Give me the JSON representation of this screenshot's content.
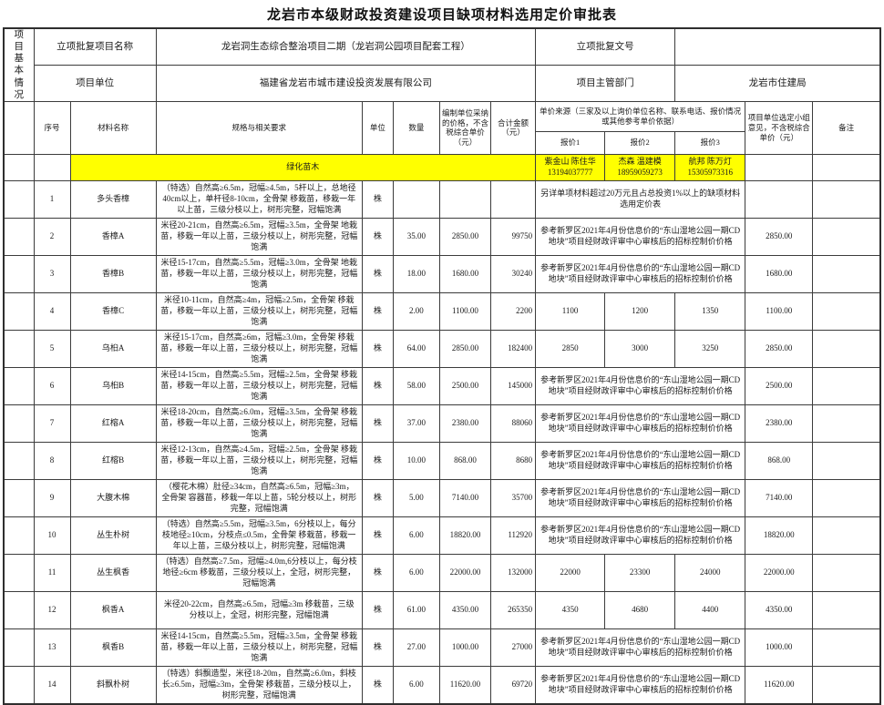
{
  "title": "龙岩市本级财政投资建设项目缺项材料选用定价审批表",
  "info": {
    "section_label": "项目基本情况",
    "row1": {
      "label1": "立项批复项目名称",
      "value1": "龙岩洞生态综合整治项目二期（龙岩洞公园项目配套工程）",
      "label2": "立项批复文号",
      "value2": ""
    },
    "row2": {
      "label1": "项目单位",
      "value1": "福建省龙岩市城市建设投资发展有限公司",
      "label2": "项目主管部门",
      "value2": "龙岩市住建局"
    }
  },
  "table": {
    "headers": {
      "seq": "序号",
      "name": "材料名称",
      "spec": "规格与相关要求",
      "unit": "单位",
      "qty": "数量",
      "price": "编制单位采纳的价格，不含税综合单价（元）",
      "total": "合计金额（元）",
      "source_group": "单价来源（三家及以上询价单位名称、联系电话、报价情况或其他参考单价依据）",
      "quote1": "报价1",
      "quote2": "报价2",
      "quote3": "报价3",
      "selected": "项目单位选定小组意见，不含税综合单价（元）",
      "note": "备注"
    },
    "category_row": {
      "label": "绿化苗木",
      "highlight_color": "#ffff00",
      "vendors": [
        {
          "name": "紫金山 陈住华",
          "phone": "13194037777"
        },
        {
          "name": "杰森 温建模",
          "phone": "18959059273"
        },
        {
          "name": "航邦 陈万灯",
          "phone": "15305973316"
        }
      ]
    },
    "rows": [
      {
        "no": "1",
        "name": "多头香樟",
        "spec": "（特选）自然高≥6.5m，冠幅≥4.5m，5杆以上，总地径40cm以上，单杆径8-10cm，全骨架 移栽苗，移栽一年以上苗，三级分枝以上，树形完整，冠幅饱满",
        "unit": "株",
        "qty": "",
        "price": "",
        "total": "",
        "source": "另详单项材料超过20万元且占总投资1%以上的缺项材料选用定价表",
        "selected": "",
        "note": ""
      },
      {
        "no": "2",
        "name": "香樟A",
        "spec": "米径20-21cm，自然高≥6.5m，冠幅≥3.5m，全骨架 地栽苗，移栽一年以上苗，三级分枝以上，树形完整，冠幅饱满",
        "unit": "株",
        "qty": "35.00",
        "price": "2850.00",
        "total": "99750",
        "source": "参考新罗区2021年4月份信息价的“东山湿地公园一期CD地块”项目经财政评审中心审核后的招标控制价价格",
        "selected": "2850.00",
        "note": ""
      },
      {
        "no": "3",
        "name": "香樟B",
        "spec": "米径15-17cm，自然高≥5.5m，冠幅≥3.0m，全骨架 地栽苗，移栽一年以上苗，三级分枝以上，树形完整，冠幅饱满",
        "unit": "株",
        "qty": "18.00",
        "price": "1680.00",
        "total": "30240",
        "source": "参考新罗区2021年4月份信息价的“东山湿地公园一期CD地块”项目经财政评审中心审核后的招标控制价价格",
        "selected": "1680.00",
        "note": ""
      },
      {
        "no": "4",
        "name": "香樟C",
        "spec": "米径10-11cm，自然高≥4m，冠幅≥2.5m，全骨架 移栽苗，移栽一年以上苗，三级分枝以上，树形完整，冠幅饱满",
        "unit": "株",
        "qty": "2.00",
        "price": "1100.00",
        "total": "2200",
        "q1": "1100",
        "q2": "1200",
        "q3": "1350",
        "selected": "1100.00",
        "note": ""
      },
      {
        "no": "5",
        "name": "乌桕A",
        "spec": "米径15-17cm，自然高≥6m，冠幅≥3.0m，全骨架 移栽苗，移栽一年以上苗，三级分枝以上，树形完整，冠幅饱满",
        "unit": "株",
        "qty": "64.00",
        "price": "2850.00",
        "total": "182400",
        "q1": "2850",
        "q2": "3000",
        "q3": "3250",
        "selected": "2850.00",
        "note": ""
      },
      {
        "no": "6",
        "name": "乌桕B",
        "spec": "米径14-15cm，自然高≥5.5m，冠幅≥2.5m，全骨架 移栽苗，移栽一年以上苗，三级分枝以上，树形完整，冠幅饱满",
        "unit": "株",
        "qty": "58.00",
        "price": "2500.00",
        "total": "145000",
        "source": "参考新罗区2021年4月份信息价的“东山湿地公园一期CD地块”项目经财政评审中心审核后的招标控制价价格",
        "selected": "2500.00",
        "note": ""
      },
      {
        "no": "7",
        "name": "红榕A",
        "spec": "米径18-20cm，自然高≥6.0m，冠幅≥3.5m，全骨架 移栽苗，移栽一年以上苗，三级分枝以上，树形完整，冠幅饱满",
        "unit": "株",
        "qty": "37.00",
        "price": "2380.00",
        "total": "88060",
        "source": "参考新罗区2021年4月份信息价的“东山湿地公园一期CD地块”项目经财政评审中心审核后的招标控制价价格",
        "selected": "2380.00",
        "note": ""
      },
      {
        "no": "8",
        "name": "红榕B",
        "spec": "米径12-13cm，自然高≥4.5m，冠幅≥2.5m，全骨架 移栽苗，移栽一年以上苗，三级分枝以上，树形完整，冠幅饱满",
        "unit": "株",
        "qty": "10.00",
        "price": "868.00",
        "total": "8680",
        "source": "参考新罗区2021年4月份信息价的“东山湿地公园一期CD地块”项目经财政评审中心审核后的招标控制价价格",
        "selected": "868.00",
        "note": ""
      },
      {
        "no": "9",
        "name": "大腹木棉",
        "spec": "（樱花木棉）肚径≥34cm，自然高≥6.5m，冠幅≥3m，全骨架 容器苗，移栽一年以上苗，5轮分枝以上，树形完整，冠幅饱满",
        "unit": "株",
        "qty": "5.00",
        "price": "7140.00",
        "total": "35700",
        "source": "参考新罗区2021年4月份信息价的“东山湿地公园一期CD地块”项目经财政评审中心审核后的招标控制价价格",
        "selected": "7140.00",
        "note": ""
      },
      {
        "no": "10",
        "name": "丛生朴树",
        "spec": "（特选）自然高≥5.5m，冠幅≥3.5m，6分枝以上，每分枝地径≥10cm，分枝点≤0.5m，全骨架 移栽苗，移栽一年以上苗，三级分枝以上，树形完整，冠幅饱满",
        "unit": "株",
        "qty": "6.00",
        "price": "18820.00",
        "total": "112920",
        "source": "参考新罗区2021年4月份信息价的“东山湿地公园一期CD地块”项目经财政评审中心审核后的招标控制价价格",
        "selected": "18820.00",
        "note": ""
      },
      {
        "no": "11",
        "name": "丛生枫香",
        "spec": "（特选）自然高≥7.5m，冠幅≥4.0m,6分枝以上，每分枝地径≥6cm 移栽苗，三级分枝以上，全冠，树形完整，冠幅饱满",
        "unit": "株",
        "qty": "6.00",
        "price": "22000.00",
        "total": "132000",
        "q1": "22000",
        "q2": "23300",
        "q3": "24000",
        "selected": "22000.00",
        "note": ""
      },
      {
        "no": "12",
        "name": "枫香A",
        "spec": "米径20-22cm，自然高≥6.5m，冠幅≥3m 移栽苗，三级分枝以上，全冠，树形完整，冠幅饱满",
        "unit": "株",
        "qty": "61.00",
        "price": "4350.00",
        "total": "265350",
        "q1": "4350",
        "q2": "4680",
        "q3": "4400",
        "selected": "4350.00",
        "note": ""
      },
      {
        "no": "13",
        "name": "枫香B",
        "spec": "米径14-15cm，自然高≥5.5m，冠幅≥3.5m，全骨架 移栽苗，移栽一年以上苗，三级分枝以上，树形完整，冠幅饱满",
        "unit": "株",
        "qty": "27.00",
        "price": "1000.00",
        "total": "27000",
        "source": "参考新罗区2021年4月份信息价的“东山湿地公园一期CD地块”项目经财政评审中心审核后的招标控制价价格",
        "selected": "1000.00",
        "note": ""
      },
      {
        "no": "14",
        "name": "斜飘朴树",
        "spec": "（特选）斜飘造型，米径18-20m，自然高≥6.0m，斜枝长≥6.5m，冠幅≥3m，全骨架 移栽苗，三级分枝以上，树形完整，冠幅饱满",
        "unit": "株",
        "qty": "6.00",
        "price": "11620.00",
        "total": "69720",
        "source": "参考新罗区2021年4月份信息价的“东山湿地公园一期CD地块”项目经财政评审中心审核后的招标控制价价格",
        "selected": "11620.00",
        "note": ""
      }
    ]
  }
}
